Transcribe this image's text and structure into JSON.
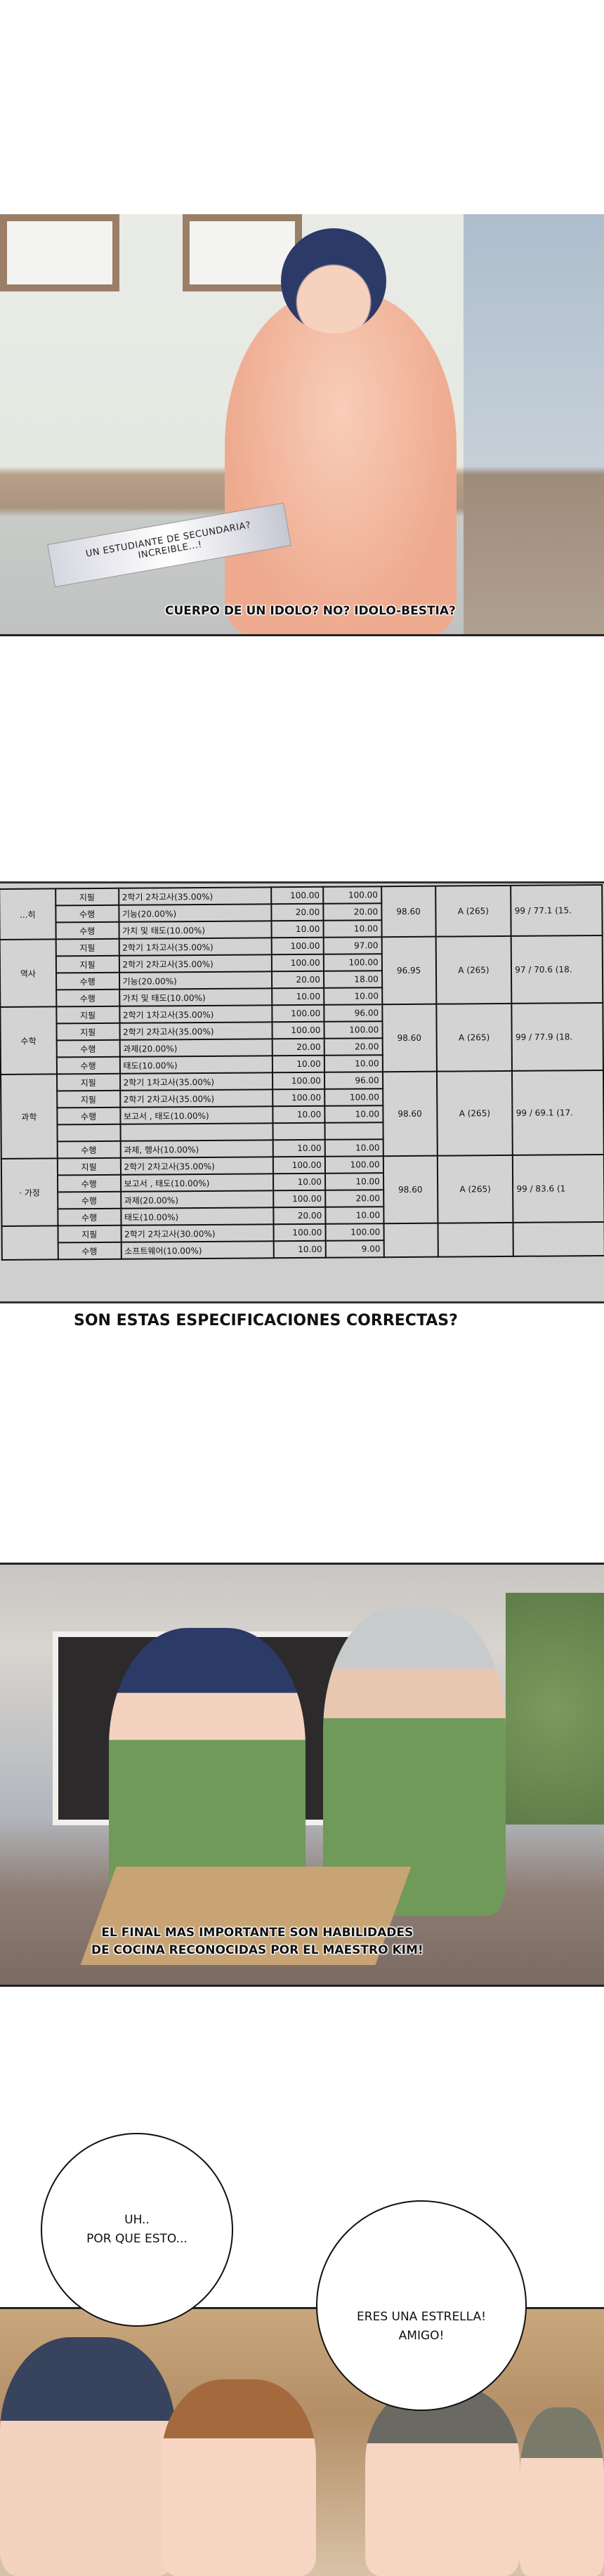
{
  "panel1": {
    "caption_box_lines": [
      "UN ESTUDIANTE DE SECUNDARIA?",
      "INCREIBLE...!"
    ],
    "narration": "CUERPO DE UN IDOLO? NO? IDOLO-BESTIA?"
  },
  "panel2": {
    "report_table": {
      "groups": [
        {
          "subject": "...히",
          "total": "98.60",
          "grade": "A (265)",
          "rank": "99 / 77.1 (15.",
          "rows": [
            {
              "type": "지필",
              "item": "2학기 2차고사(35.00%)",
              "max": "100.00",
              "score": "100.00"
            },
            {
              "type": "수행",
              "item": "기능(20.00%)",
              "max": "20.00",
              "score": "20.00"
            },
            {
              "type": "수행",
              "item": "가치 및 태도(10.00%)",
              "max": "10.00",
              "score": "10.00"
            }
          ]
        },
        {
          "subject": "역사",
          "total": "96.95",
          "grade": "A (265)",
          "rank": "97 / 70.6 (18.",
          "rows": [
            {
              "type": "지필",
              "item": "2학기 1차고사(35.00%)",
              "max": "100.00",
              "score": "97.00"
            },
            {
              "type": "지필",
              "item": "2학기 2차고사(35.00%)",
              "max": "100.00",
              "score": "100.00"
            },
            {
              "type": "수행",
              "item": "기능(20.00%)",
              "max": "20.00",
              "score": "18.00"
            },
            {
              "type": "수행",
              "item": "가치 및 태도(10.00%)",
              "max": "10.00",
              "score": "10.00"
            }
          ]
        },
        {
          "subject": "수학",
          "total": "98.60",
          "grade": "A (265)",
          "rank": "99 / 77.9 (18.",
          "rows": [
            {
              "type": "지필",
              "item": "2학기 1차고사(35.00%)",
              "max": "100.00",
              "score": "96.00"
            },
            {
              "type": "지필",
              "item": "2학기 2차고사(35.00%)",
              "max": "100.00",
              "score": "100.00"
            },
            {
              "type": "수행",
              "item": "과제(20.00%)",
              "max": "20.00",
              "score": "20.00"
            },
            {
              "type": "수행",
              "item": "태도(10.00%)",
              "max": "10.00",
              "score": "10.00"
            }
          ]
        },
        {
          "subject": "과학",
          "total": "98.60",
          "grade": "A (265)",
          "rank": "99 / 69.1 (17.",
          "rows": [
            {
              "type": "지필",
              "item": "2학기 1차고사(35.00%)",
              "max": "100.00",
              "score": "96.00"
            },
            {
              "type": "지필",
              "item": "2학기 2차고사(35.00%)",
              "max": "100.00",
              "score": "100.00"
            },
            {
              "type": "수행",
              "item": "보고서 , 태도(10.00%)",
              "max": "10.00",
              "score": "10.00"
            },
            {
              "type": "",
              "item": "",
              "max": "",
              "score": ""
            },
            {
              "type": "수행",
              "item": "과제, 행사(10.00%)",
              "max": "10.00",
              "score": "10.00"
            }
          ]
        },
        {
          "subject": "· 가정",
          "total": "98.60",
          "grade": "A (265)",
          "rank": "99 / 83.6 (1",
          "rows": [
            {
              "type": "지필",
              "item": "2학기 2차고사(35.00%)",
              "max": "100.00",
              "score": "100.00"
            },
            {
              "type": "수행",
              "item": "보고서 , 태도(10.00%)",
              "max": "10.00",
              "score": "10.00"
            },
            {
              "type": "수행",
              "item": "과제(20.00%)",
              "max": "100.00",
              "score": "20.00"
            },
            {
              "type": "수행",
              "item": "태도(10.00%)",
              "max": "20.00",
              "score": "10.00"
            }
          ]
        },
        {
          "subject": "",
          "total": "",
          "grade": "",
          "rank": "",
          "rows": [
            {
              "type": "지필",
              "item": "2학기 2차고사(30.00%)",
              "max": "100.00",
              "score": "100.00"
            },
            {
              "type": "수행",
              "item": "소프트웨어(10.00%)",
              "max": "10.00",
              "score": "9.00"
            }
          ]
        }
      ]
    },
    "narration": "SON ESTAS ESPECIFICACIONES CORRECTAS?"
  },
  "panel3": {
    "narration_lines": [
      "EL FINAL MAS IMPORTANTE SON HABILIDADES",
      "DE COCINA RECONOCIDAS POR EL MAESTRO KIM!"
    ],
    "apron_color": "#6f9a5a",
    "hair_color": "#2c3a68"
  },
  "speech": {
    "bubble1_lines": [
      "UH..",
      "POR QUE ESTO..."
    ],
    "bubble2_lines": [
      "ERES UNA ESTRELLA!",
      "AMIGO!"
    ]
  }
}
